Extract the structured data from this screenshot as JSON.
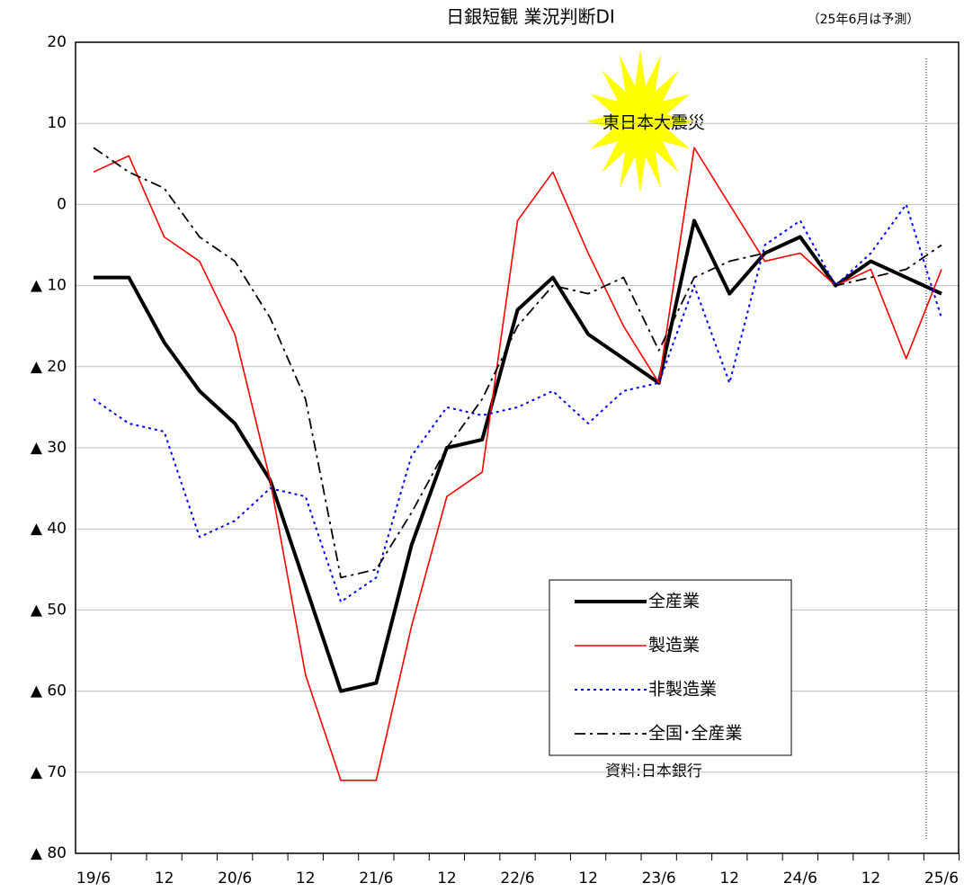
{
  "chart_data": {
    "type": "line",
    "title": "日銀短観 業況判断DI",
    "subtitle": "（25年6月は予測）",
    "annotations": [
      "東日本大震災",
      "資料:日本銀行"
    ],
    "categories": [
      "19/6",
      null,
      "12",
      null,
      "20/6",
      null,
      "12",
      null,
      "21/6",
      null,
      "12",
      null,
      "22/6",
      null,
      "12",
      null,
      "23/6",
      null,
      "12",
      null,
      "24/6",
      null,
      "12",
      null,
      "25/6"
    ],
    "series": [
      {
        "name": "全産業",
        "color": "#000000",
        "style": "solid-bold",
        "values": [
          -9,
          -9,
          -17,
          -23,
          -27,
          -34,
          -47,
          -60,
          -59,
          -42,
          -30,
          -29,
          -13,
          -9,
          -16,
          -19,
          -22,
          -2,
          -11,
          -6,
          -4,
          -10,
          -7,
          -9,
          -11
        ]
      },
      {
        "name": "製造業",
        "color": "#ff0000",
        "style": "solid",
        "values": [
          4,
          6,
          -4,
          -7,
          -16,
          -34,
          -58,
          -71,
          -71,
          -52,
          -36,
          -33,
          -2,
          4,
          -6,
          -15,
          -22,
          7,
          0,
          -7,
          -6,
          -10,
          -8,
          -19,
          -8
        ]
      },
      {
        "name": "非製造業",
        "color": "#0000ff",
        "style": "dotted",
        "values": [
          -24,
          -27,
          -28,
          -41,
          -39,
          -35,
          -36,
          -49,
          -46,
          -31,
          -25,
          -26,
          -25,
          -23,
          -27,
          -23,
          -22,
          -10,
          -22,
          -5,
          -2,
          -10,
          -6,
          0,
          -14
        ]
      },
      {
        "name": "全国･全産業",
        "color": "#000000",
        "style": "dashdot",
        "values": [
          7,
          4,
          2,
          -4,
          -7,
          -14,
          -24,
          -46,
          -45,
          -38,
          -30,
          -24,
          -15,
          -10,
          -11,
          -9,
          -18,
          -9,
          -7,
          -6,
          -4,
          -10,
          -9,
          -8,
          -5
        ]
      }
    ],
    "ylim": [
      -80,
      20
    ],
    "yticks": [
      20,
      10,
      0,
      {
        "value": -10,
        "label": "▲ 10"
      },
      {
        "value": -20,
        "label": "▲ 20"
      },
      {
        "value": -30,
        "label": "▲ 30"
      },
      {
        "value": -40,
        "label": "▲ 40"
      },
      {
        "value": -50,
        "label": "▲ 50"
      },
      {
        "value": -60,
        "label": "▲ 60"
      },
      {
        "value": -70,
        "label": "▲ 70"
      },
      {
        "value": -80,
        "label": "▲ 80"
      }
    ],
    "grid": true,
    "legend": "lower right"
  }
}
